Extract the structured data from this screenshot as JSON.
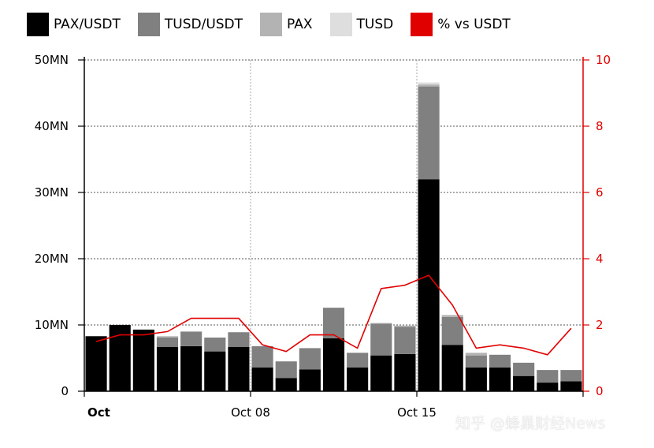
{
  "chart_data": {
    "type": "bar",
    "stacked": true,
    "legend": [
      {
        "name": "PAX/USDT",
        "color": "#000000"
      },
      {
        "name": "TUSD/USDT",
        "color": "#808080"
      },
      {
        "name": "PAX",
        "color": "#b3b3b3"
      },
      {
        "name": "TUSD",
        "color": "#dedede"
      },
      {
        "name": "% vs USDT",
        "color": "#e00000"
      }
    ],
    "left_axis": {
      "min": 0,
      "max": 50,
      "ticks": [
        0,
        10,
        20,
        30,
        40,
        50
      ],
      "tick_labels": [
        "0",
        "10MN",
        "20MN",
        "30MN",
        "40MN",
        "50MN"
      ]
    },
    "right_axis": {
      "min": 0,
      "max": 10,
      "ticks": [
        0,
        2,
        4,
        6,
        8,
        10
      ],
      "tick_labels": [
        "0",
        "2",
        "4",
        "6",
        "8",
        "10"
      ],
      "color": "#e00000"
    },
    "x_axis": {
      "labels": [
        {
          "index": 0,
          "text": "Oct",
          "bold": true
        },
        {
          "index": 7,
          "text": "Oct 08",
          "bold": false
        },
        {
          "index": 14,
          "text": "Oct 15",
          "bold": false
        }
      ],
      "grid_at": [
        7,
        14
      ]
    },
    "series": [
      {
        "name": "PAX/USDT",
        "color": "#000000",
        "values": [
          8.3,
          10.0,
          9.3,
          6.7,
          6.8,
          6.0,
          6.7,
          3.6,
          2.0,
          3.3,
          8.0,
          3.6,
          5.4,
          5.6,
          32.0,
          7.0,
          3.6,
          3.6,
          2.3,
          1.3,
          1.5
        ]
      },
      {
        "name": "TUSD/USDT",
        "color": "#808080",
        "values": [
          0,
          0,
          0,
          1.4,
          2.2,
          2.1,
          2.2,
          3.2,
          2.5,
          3.2,
          4.6,
          2.2,
          4.8,
          4.1,
          14.0,
          4.2,
          1.8,
          1.9,
          2.0,
          1.9,
          1.7
        ]
      },
      {
        "name": "PAX",
        "color": "#b3b3b3",
        "values": [
          0,
          0,
          0,
          0.2,
          0,
          0,
          0,
          0,
          0,
          0,
          0,
          0,
          0.1,
          0.2,
          0.3,
          0.3,
          0.4,
          0,
          0,
          0,
          0
        ]
      },
      {
        "name": "TUSD",
        "color": "#dedede",
        "values": [
          0,
          0,
          0,
          0,
          0,
          0,
          0,
          0,
          0,
          0,
          0,
          0,
          0,
          0,
          0.3,
          0,
          0,
          0,
          0,
          0,
          0
        ]
      }
    ],
    "line": {
      "name": "% vs USDT",
      "color": "#e00000",
      "values": [
        1.5,
        1.7,
        1.7,
        1.8,
        2.2,
        2.2,
        2.2,
        1.4,
        1.2,
        1.7,
        1.7,
        1.3,
        3.1,
        3.2,
        3.5,
        2.6,
        1.3,
        1.4,
        1.3,
        1.1,
        1.9
      ]
    },
    "grid": true
  },
  "watermark": "知乎 @蜂巢财经News"
}
